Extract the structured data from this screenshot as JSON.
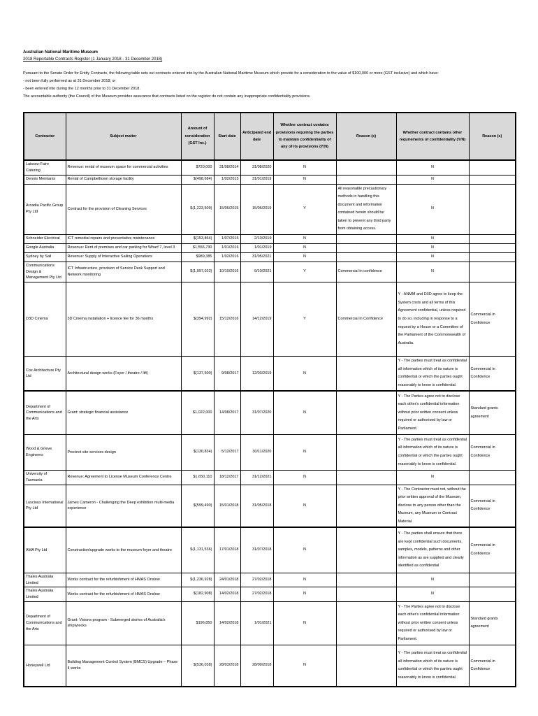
{
  "header": {
    "title": "Australian National Maritime Museum",
    "subtitle": "2018 Reportable Contracts Register (1 January 2018 - 31 December 2018)",
    "intro": [
      "Pursuant to the Senate Order for Entity Contracts, the following table sets out contracts entered into by the Australian National Maritime Museum which provide for a consideration to the value of $100,000 or more (GST inclusive) and which have:",
      "- not been fully performed as at 31 December 2018; or",
      "- been entered into during the 12 months prior to 31 December 2018.",
      "The accountable authority (the Council) of the Museum provides assurance that contracts listed on the register do not contain any inappropriate confidentiality provisions."
    ]
  },
  "table": {
    "headers": [
      "Contractor",
      "Subject matter",
      "Amount of consideration (GST Inc.)",
      "Start date",
      "Anticipated end date",
      "Whether contract contains provisions requiring the parties to maintain confidentiality of any of its provisions (Y/N)",
      "Reason (s)",
      "Whether contract contains other requirements of confidentiality (Y/N)",
      "Reason (s)"
    ],
    "rows": [
      {
        "contractor": "Laissez-Faire Catering",
        "subject": "Revenue: rental of museum space for commercial activities",
        "amount": "$720,000",
        "start_date": "31/08/2014",
        "end_date": "31/08/2020",
        "confidentiality_provisions": "N",
        "reason_1": "",
        "other_requirements": "N",
        "reason_2": ""
      },
      {
        "contractor": "Dennis Meintanis",
        "subject": "Rental of Campbelltown storage facility",
        "amount": "$(498,684)",
        "start_date": "1/02/2015",
        "end_date": "31/01/2019",
        "confidentiality_provisions": "N",
        "reason_1": "",
        "other_requirements": "N",
        "reason_2": ""
      },
      {
        "contractor": "Arcadia Pacific Group Pty Ltd",
        "subject": "Contract for the provision of Cleaning Services",
        "amount": "$(1,223,509)",
        "start_date": "15/06/2015",
        "end_date": "15/06/2019",
        "confidentiality_provisions": "Y",
        "reason_1": "All reasonable precautionary methods in handling this document and information contained herein should be taken to prevent any third party from obtaining access.",
        "other_requirements": "N",
        "reason_2": ""
      },
      {
        "contractor": "Schneider Electrical",
        "subject": "ICT remedial repairs and preventative maintenance",
        "amount": "$(153,864)",
        "start_date": "1/07/2015",
        "end_date": "2/10/2019",
        "confidentiality_provisions": "N",
        "reason_1": "",
        "other_requirements": "N",
        "reason_2": ""
      },
      {
        "contractor": "Google Australia",
        "subject": "Revenue: Rent of premises and car parking for Wharf 7, level 3",
        "amount": "$1,556,730",
        "start_date": "1/01/2016",
        "end_date": "1/01/2019",
        "confidentiality_provisions": "N",
        "reason_1": "",
        "other_requirements": "N",
        "reason_2": ""
      },
      {
        "contractor": "Sydney by Sail",
        "subject": "Revenue: Supply of Interactive Sailing Operations",
        "amount": "$989,385",
        "start_date": "1/02/2016",
        "end_date": "31/05/2021",
        "confidentiality_provisions": "N",
        "reason_1": "",
        "other_requirements": "N",
        "reason_2": ""
      },
      {
        "contractor": "Communications Design & Management Pty Ltd",
        "subject": "ICT Infrastructure, provision of Service Desk Support and Network monitoring",
        "amount": "$(1,097,023)",
        "start_date": "10/10/2016",
        "end_date": "9/10/2021",
        "confidentiality_provisions": "Y",
        "reason_1": "Commercial in confidence",
        "other_requirements": "N",
        "reason_2": ""
      },
      {
        "contractor": "D3D Cinema",
        "subject": "3D Cinema installation + licence fee for 36 months",
        "amount": "$(394,992)",
        "start_date": "15/12/2016",
        "end_date": "14/12/2019",
        "confidentiality_provisions": "Y",
        "reason_1": "Commercial in Confidence",
        "other_requirements": "Y - ANMM and D3D agree to keep the System costs and all terms of this Agreement confidential, unless required to do so, including in response to a request by a House or  a Committee of the Parliament of the Commonwealth of Australia.",
        "reason_2": "Commercial in Confidence"
      },
      {
        "contractor": "Cox Architecture Pty Ltd",
        "subject": "Architectural design works (Foyer / theatre / lift)",
        "amount": "$(137,500)",
        "start_date": "9/08/2017",
        "end_date": "12/03/2019",
        "confidentiality_provisions": "N",
        "reason_1": "",
        "other_requirements": "Y - The parties must treat as confidential all information which of its nature is confidential or which the parties ought reasonably to know is confidential.",
        "reason_2": "Commercial in Confidence"
      },
      {
        "contractor": "Department of Communications and the Arts",
        "subject": "Grant: strategic financial assistance",
        "amount": "$1,022,000",
        "start_date": "14/08/2017",
        "end_date": "31/07/2020",
        "confidentiality_provisions": "N",
        "reason_1": "",
        "other_requirements": "Y - The Parties agree not to disclose each other's confidential information without prior written consent unless required or authorised by law or Parliament.",
        "reason_2": "Standard grants agreement"
      },
      {
        "contractor": "Wood & Grieve Engineers",
        "subject": "Precinct site services design",
        "amount": "$(130,834)",
        "start_date": "5/12/2017",
        "end_date": "30/11/2020",
        "confidentiality_provisions": "N",
        "reason_1": "",
        "other_requirements": "Y - The parties must treat as confidential all information which of its nature is confidential or which the parties ought reasonably to know is confidential.",
        "reason_2": "Commercial in Confidence"
      },
      {
        "contractor": "University of Tasmania",
        "subject": "Revenue: Agreement to License Museum Conference Centre",
        "amount": "$1,650,110",
        "start_date": "18/12/2017",
        "end_date": "31/12/2021",
        "confidentiality_provisions": "N",
        "reason_1": "",
        "other_requirements": "N",
        "reason_2": ""
      },
      {
        "contractor": "Luscious International Pty Ltd",
        "subject": "James Cameron - Challenging the Deep exhibition multi-media experience",
        "amount": "$(599,490)",
        "start_date": "15/01/2018",
        "end_date": "31/05/2018",
        "confidentiality_provisions": "N",
        "reason_1": "",
        "other_requirements": "Y - The Contractor must not, without the prior written  approval of the Museum, disclose to any person other than the Museum, any Museum or Contract Material.",
        "reason_2": "Commercial in Confidence"
      },
      {
        "contractor": "AMA Pty Ltd",
        "subject": "Construction/upgrade works to the museum foyer and theatre",
        "amount": "$(1,131,536)",
        "start_date": "17/01/2018",
        "end_date": "31/07/2018",
        "confidentiality_provisions": "N",
        "reason_1": "",
        "other_requirements": "Y - The parties shall ensure that there are kept confidential such documents, samples, models, patterns and other information as are supplied and clearly identified as confidential",
        "reason_2": "Commercial in Confidence"
      },
      {
        "contractor": "Thales Australia Limited",
        "subject": "Works contract for the refurbishment of HMAS Onslow",
        "amount": "$(1,236,928)",
        "start_date": "24/01/2018",
        "end_date": "27/02/2018",
        "confidentiality_provisions": "N",
        "reason_1": "",
        "other_requirements": "N",
        "reason_2": ""
      },
      {
        "contractor": "Thales Australia Limited",
        "subject": "Works contract for the refurbishment of HMAS Onslow",
        "amount": "$(182,908)",
        "start_date": "14/02/2018",
        "end_date": "27/02/2018",
        "confidentiality_provisions": "N",
        "reason_1": "",
        "other_requirements": "N",
        "reason_2": ""
      },
      {
        "contractor": "Department of Communications and the Arts",
        "subject": "Grant: Visions program - Submerged stories of Australia's shipwrecks",
        "amount": "$196,850",
        "start_date": "14/02/2018",
        "end_date": "1/01/2021",
        "confidentiality_provisions": "N",
        "reason_1": "",
        "other_requirements": "Y - The Parties agree not to disclose each other's confidential information without prior written consent unless required or authorised by law or Parliament.",
        "reason_2": "Standard grants agreement"
      },
      {
        "contractor": "Honeywell Ltd",
        "subject": "Building Management Control System (BMCS) Upgrade – Phase II works",
        "amount": "$(536,038)",
        "start_date": "28/03/2018",
        "end_date": "28/09/2018",
        "confidentiality_provisions": "N",
        "reason_1": "",
        "other_requirements": "Y - The parties must treat as confidential all information which of its nature is confidential or which the parties ought reasonably to know is confidential.",
        "reason_2": "Commercial in Confidence"
      }
    ]
  },
  "colors": {
    "header_bg": "#d9d9d9",
    "border": "#000000",
    "text": "#000000"
  }
}
